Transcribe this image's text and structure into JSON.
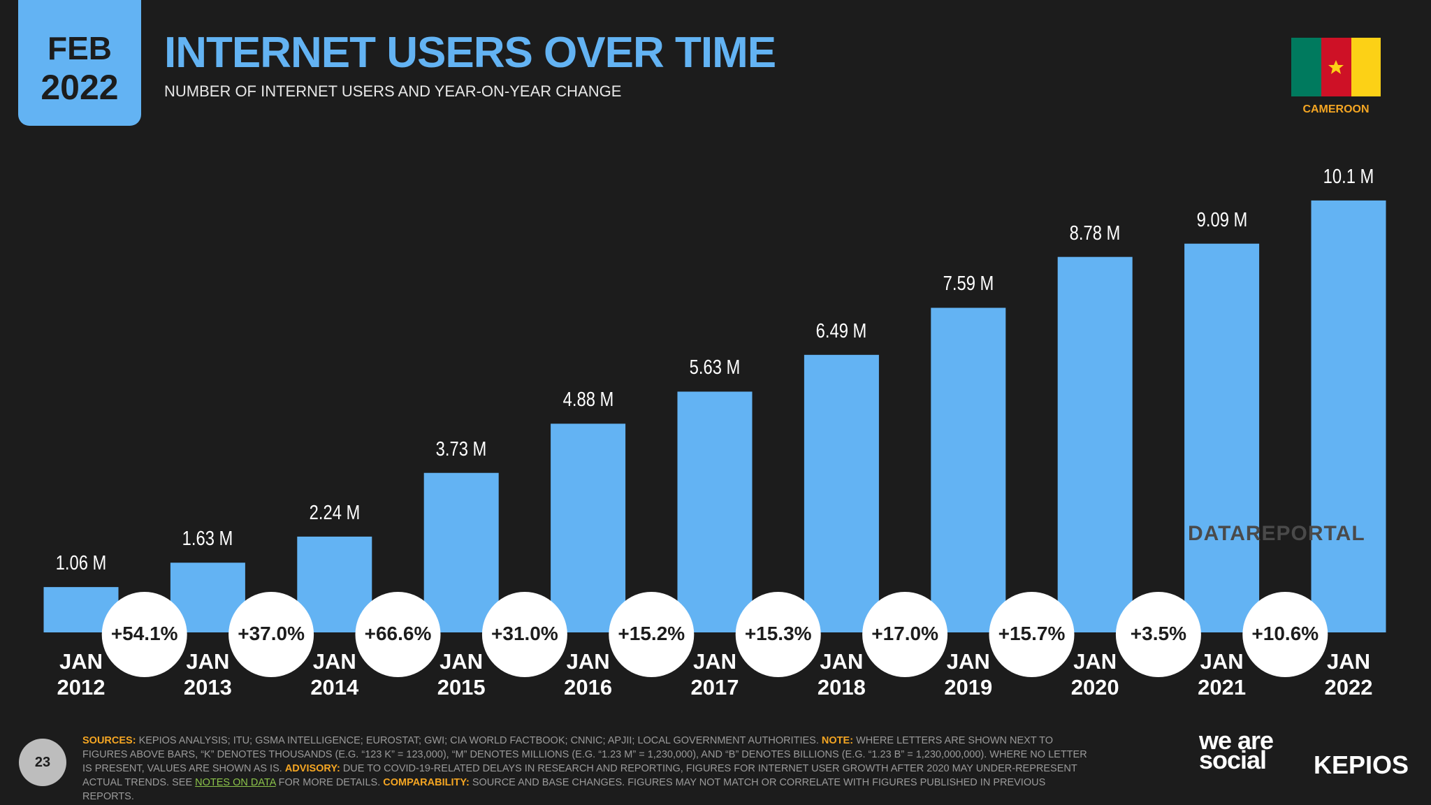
{
  "header": {
    "month": "FEB",
    "year": "2022",
    "title": "INTERNET USERS OVER TIME",
    "subtitle": "NUMBER OF INTERNET USERS AND YEAR-ON-YEAR CHANGE",
    "country": "CAMEROON"
  },
  "chart_data": {
    "type": "bar",
    "categories": [
      "JAN 2012",
      "JAN 2013",
      "JAN 2014",
      "JAN 2015",
      "JAN 2016",
      "JAN 2017",
      "JAN 2018",
      "JAN 2019",
      "JAN 2020",
      "JAN 2021",
      "JAN 2022"
    ],
    "values": [
      1.06,
      1.63,
      2.24,
      3.73,
      4.88,
      5.63,
      6.49,
      7.59,
      8.78,
      9.09,
      10.1
    ],
    "value_labels": [
      "1.06 M",
      "1.63 M",
      "2.24 M",
      "3.73 M",
      "4.88 M",
      "5.63 M",
      "6.49 M",
      "7.59 M",
      "8.78 M",
      "9.09 M",
      "10.1 M"
    ],
    "color": "#63b3f3",
    "yoy_change": {
      "values": [
        54.1,
        37.0,
        66.6,
        31.0,
        15.2,
        15.3,
        17.0,
        15.7,
        3.5,
        10.6
      ],
      "labels": [
        "+54.1%",
        "+37.0%",
        "+66.6%",
        "+31.0%",
        "+15.2%",
        "+15.3%",
        "+17.0%",
        "+15.7%",
        "+3.5%",
        "+10.6%"
      ]
    }
  },
  "watermark": "DATAREPORTAL",
  "page_number": "23",
  "footer": [
    "SOURCES:",
    "KEPIOS ANALYSIS; ITU; GSMA INTELLIGENCE; EUROSTAT; GWI; CIA WORLD FACTBOOK; CNNIC; APJII; LOCAL GOVERNMENT AUTHORITIES.",
    "NOTE:",
    "WHERE LETTERS ARE SHOWN NEXT TO FIGURES ABOVE BARS, “K” DENOTES THOUSANDS (E.G. “123 K” = 123,000), “M” DENOTES MILLIONS (E.G. “1.23 M” = 1,230,000), AND “B” DENOTES BILLIONS (E.G. “1.23 B” = 1,230,000,000). WHERE NO LETTER IS PRESENT, VALUES ARE SHOWN AS IS.",
    "ADVISORY:",
    "DUE TO COVID-19-RELATED DELAYS IN RESEARCH AND REPORTING, FIGURES FOR INTERNET USER GROWTH AFTER 2020 MAY UNDER-REPRESENT ACTUAL TRENDS. SEE",
    "NOTES ON DATA",
    "FOR MORE DETAILS.",
    "COMPARABILITY:",
    "SOURCE AND BASE CHANGES. FIGURES MAY NOT MATCH OR CORRELATE WITH FIGURES PUBLISHED IN PREVIOUS REPORTS."
  ],
  "brands": [
    "we are social",
    "KEPIOS"
  ]
}
